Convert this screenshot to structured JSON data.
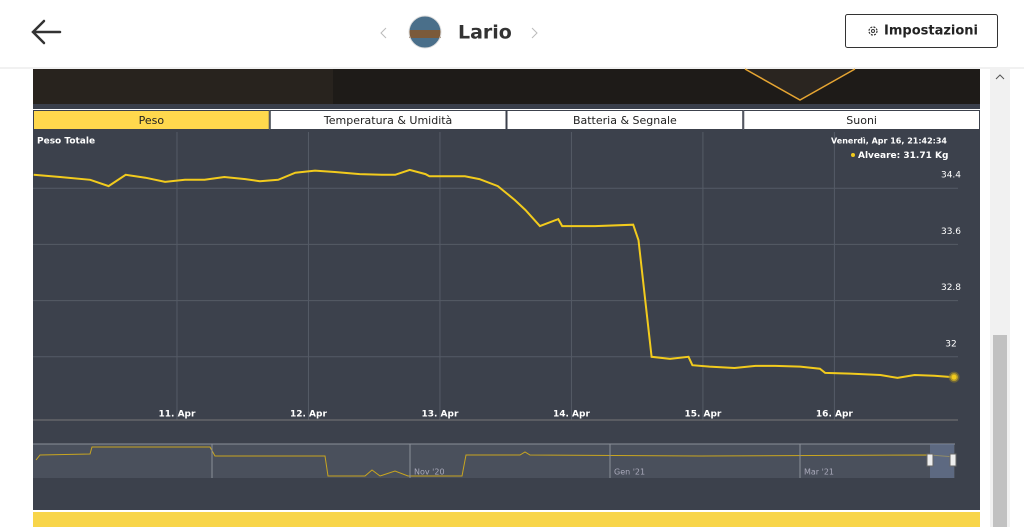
{
  "header": {
    "title": "Lario",
    "button": "Impostazioni"
  },
  "tabs": [
    "Peso",
    "Temperatura & Umidità",
    "Batteria & Segnale",
    "Suoni"
  ],
  "chart_data": {
    "type": "line",
    "title": "Peso Totale",
    "x": [
      9.91,
      10.11,
      10.34,
      10.48,
      10.61,
      10.76,
      10.91,
      11.06,
      11.21,
      11.36,
      11.52,
      11.63,
      11.77,
      11.9,
      12.05,
      12.2,
      12.39,
      12.58,
      12.66,
      12.77,
      12.89,
      12.92,
      13.08,
      13.19,
      13.3,
      13.44,
      13.57,
      13.65,
      13.76,
      13.9,
      13.93,
      14.18,
      14.47,
      14.51,
      14.61,
      14.75,
      14.89,
      14.92,
      15.05,
      15.24,
      15.4,
      15.55,
      15.74,
      15.89,
      15.93,
      16.12,
      16.35,
      16.48,
      16.61,
      16.76,
      16.91
    ],
    "series": [
      {
        "name": "Alveare",
        "color": "#f2cb1d",
        "values": [
          34.59,
          34.56,
          34.52,
          34.43,
          34.59,
          34.55,
          34.49,
          34.52,
          34.52,
          34.56,
          34.53,
          34.5,
          34.52,
          34.62,
          34.65,
          34.63,
          34.6,
          34.59,
          34.59,
          34.66,
          34.6,
          34.57,
          34.57,
          34.57,
          34.53,
          34.43,
          34.23,
          34.09,
          33.86,
          33.96,
          33.86,
          33.86,
          33.88,
          33.66,
          32.0,
          31.97,
          32.0,
          31.88,
          31.86,
          31.84,
          31.87,
          31.87,
          31.86,
          31.83,
          31.77,
          31.76,
          31.74,
          31.7,
          31.74,
          31.73,
          31.71
        ]
      }
    ],
    "xlim": [
      9.905,
      16.94
    ],
    "xticks": [
      {
        "value": 11,
        "label": "11. Apr"
      },
      {
        "value": 12,
        "label": "12. Apr"
      },
      {
        "value": 13,
        "label": "13. Apr"
      },
      {
        "value": 14,
        "label": "14. Apr"
      },
      {
        "value": 15,
        "label": "15. Apr"
      },
      {
        "value": 16,
        "label": "16. Apr"
      }
    ],
    "ylim": [
      31.1,
      35.2
    ],
    "yticks": [
      32,
      32.8,
      33.6,
      34.4
    ],
    "grid": true,
    "tooltip": {
      "date": "Venerdì, Apr 16, 21:42:34",
      "value": ": 31.71 Kg"
    }
  },
  "navigator": {
    "labels": [
      "Nov '20",
      "Gen '21",
      "Mar '21"
    ]
  }
}
